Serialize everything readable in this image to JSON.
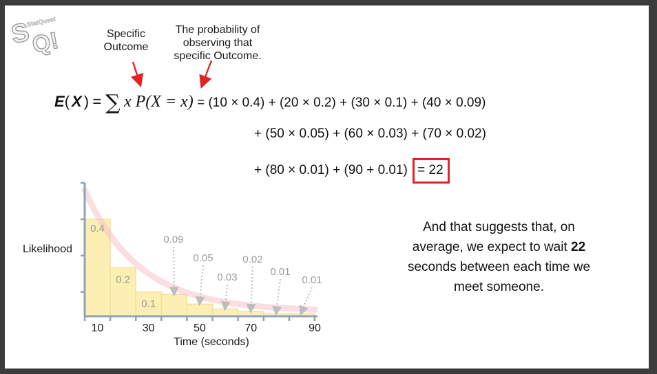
{
  "logo": {
    "text": "StatQuest",
    "mark": "SQ!"
  },
  "annotations": {
    "specific_outcome": "Specific\nOutcome",
    "probability": "The probability of\nobserving that\nspecific Outcome."
  },
  "equation": {
    "lhs_bold": "E",
    "lhs_var": "X",
    "sum_symbol": "∑",
    "sum_body": "x P(X = x)",
    "line1": "= (10 × 0.4) + (20 × 0.2) + (30 × 0.1) + (40 × 0.09)",
    "line2": "+ (50 × 0.05) + (60 × 0.03) + (70 × 0.02)",
    "line3": "+ (80 × 0.01) + (90 + 0.01)",
    "result": "= 22"
  },
  "summary": {
    "before": "And that suggests that, on average, we expect to wait",
    "highlight": "22",
    "after": "seconds between each time we meet someone."
  },
  "colors": {
    "bar_fill": "#fdeeb3",
    "bar_stroke": "#f4e19a",
    "curve": "#f6c3c8",
    "arrow_red": "#e02424",
    "box_red": "#e02424",
    "axis": "#8fa3b8",
    "label_gray": "#9a9a9a",
    "dotted_arrow": "#bdbdbd"
  },
  "chart_data": {
    "type": "bar",
    "x": [
      10,
      20,
      30,
      40,
      50,
      60,
      70,
      80,
      90
    ],
    "values": [
      0.4,
      0.2,
      0.1,
      0.09,
      0.05,
      0.03,
      0.02,
      0.01,
      0.01
    ],
    "labels": [
      "0.4",
      "0.2",
      "0.1",
      "0.09",
      "0.05",
      "0.03",
      "0.02",
      "0.01",
      "0.01"
    ],
    "xticks": [
      10,
      30,
      50,
      70,
      90
    ],
    "xlabel": "Time (seconds)",
    "ylabel": "Likelihood",
    "ylim": [
      0,
      0.55
    ],
    "grid": false,
    "overlay": "decaying curve"
  }
}
